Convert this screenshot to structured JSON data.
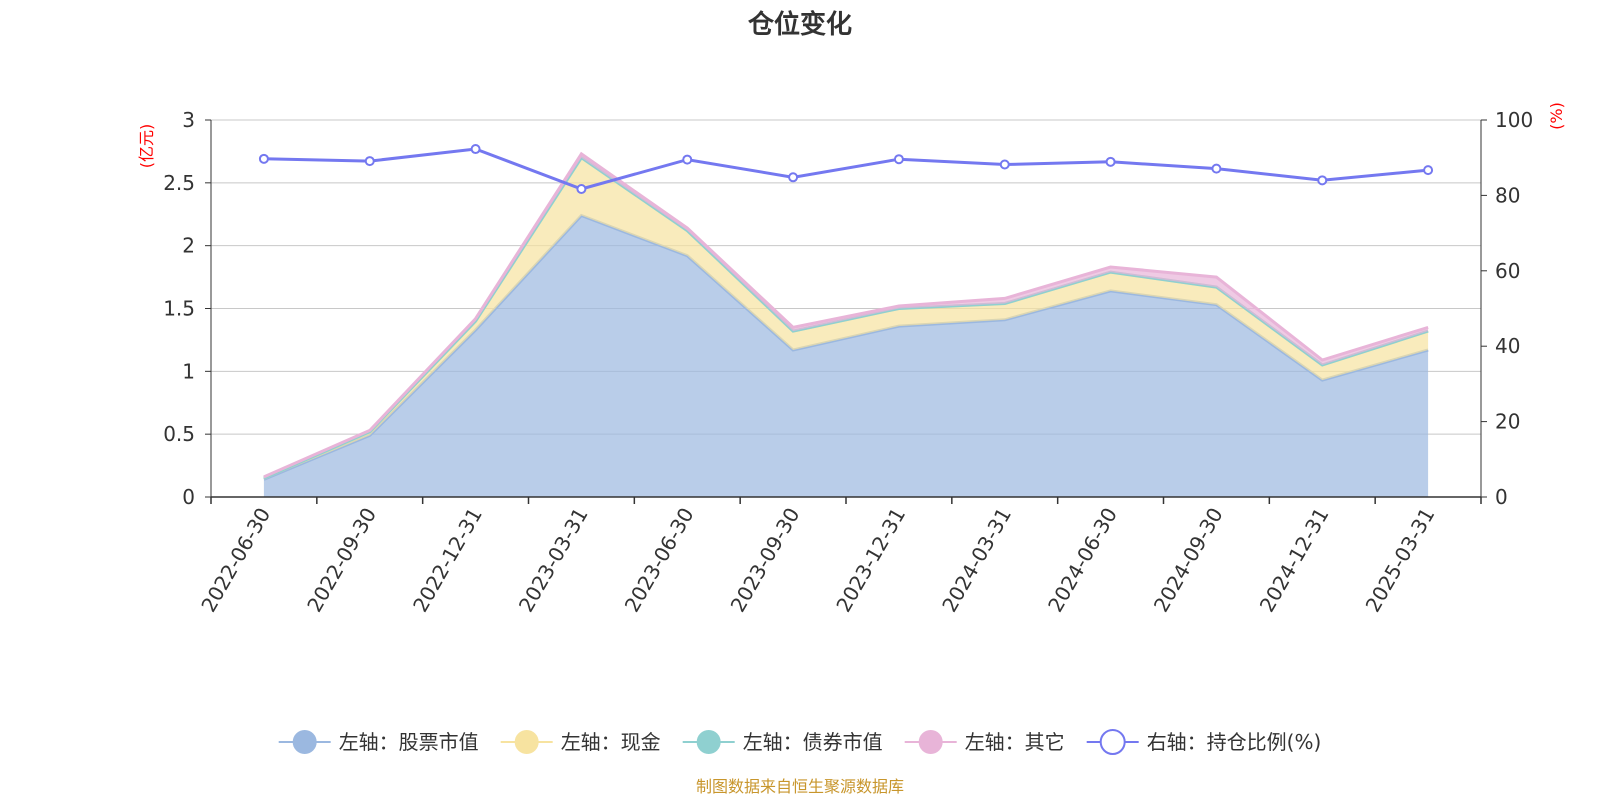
{
  "chart_data": {
    "type": "area",
    "title": "仓位变化",
    "left_axis": {
      "unit": "(亿元)",
      "ylim": [
        0,
        3
      ],
      "ticks": [
        "0",
        "0.5",
        "1",
        "1.5",
        "2",
        "2.5",
        "3"
      ]
    },
    "right_axis": {
      "unit": "(%)",
      "ylim": [
        0,
        100
      ],
      "ticks": [
        "0",
        "20",
        "40",
        "60",
        "80",
        "100"
      ]
    },
    "categories": [
      "2022-06-30",
      "2022-09-30",
      "2022-12-31",
      "2023-03-31",
      "2023-06-30",
      "2023-09-30",
      "2023-12-31",
      "2024-03-31",
      "2024-06-30",
      "2024-09-30",
      "2024-12-31",
      "2025-03-31"
    ],
    "series": [
      {
        "name": "左轴：股票市值",
        "axis": "left",
        "kind": "stacked-area",
        "color": "#9bb8e0",
        "values": [
          0.14,
          0.49,
          1.33,
          2.24,
          1.92,
          1.17,
          1.36,
          1.41,
          1.64,
          1.53,
          0.93,
          1.17
        ]
      },
      {
        "name": "左轴：现金",
        "axis": "left",
        "kind": "stacked-area",
        "color": "#f7e3a0",
        "values": [
          0.01,
          0.03,
          0.07,
          0.46,
          0.2,
          0.15,
          0.14,
          0.13,
          0.15,
          0.14,
          0.12,
          0.15
        ]
      },
      {
        "name": "左轴：债券市值",
        "axis": "left",
        "kind": "stacked-area",
        "color": "#8fd0d0",
        "values": [
          0,
          0,
          0,
          0,
          0,
          0,
          0,
          0,
          0,
          0,
          0,
          0
        ]
      },
      {
        "name": "左轴：其它",
        "axis": "left",
        "kind": "stacked-area",
        "color": "#e8b4d8",
        "values": [
          0.01,
          0.01,
          0.02,
          0.03,
          0.02,
          0.03,
          0.02,
          0.04,
          0.04,
          0.08,
          0.04,
          0.03
        ]
      },
      {
        "name": "右轴：持仓比例(%)",
        "axis": "right",
        "kind": "line",
        "color": "#7478f0",
        "values": [
          89.7,
          89.1,
          92.3,
          81.7,
          89.5,
          84.8,
          89.6,
          88.2,
          88.9,
          87.1,
          84.0,
          86.7
        ]
      }
    ],
    "grid": true,
    "legend": "bottom",
    "source": "制图数据来自恒生聚源数据库"
  }
}
